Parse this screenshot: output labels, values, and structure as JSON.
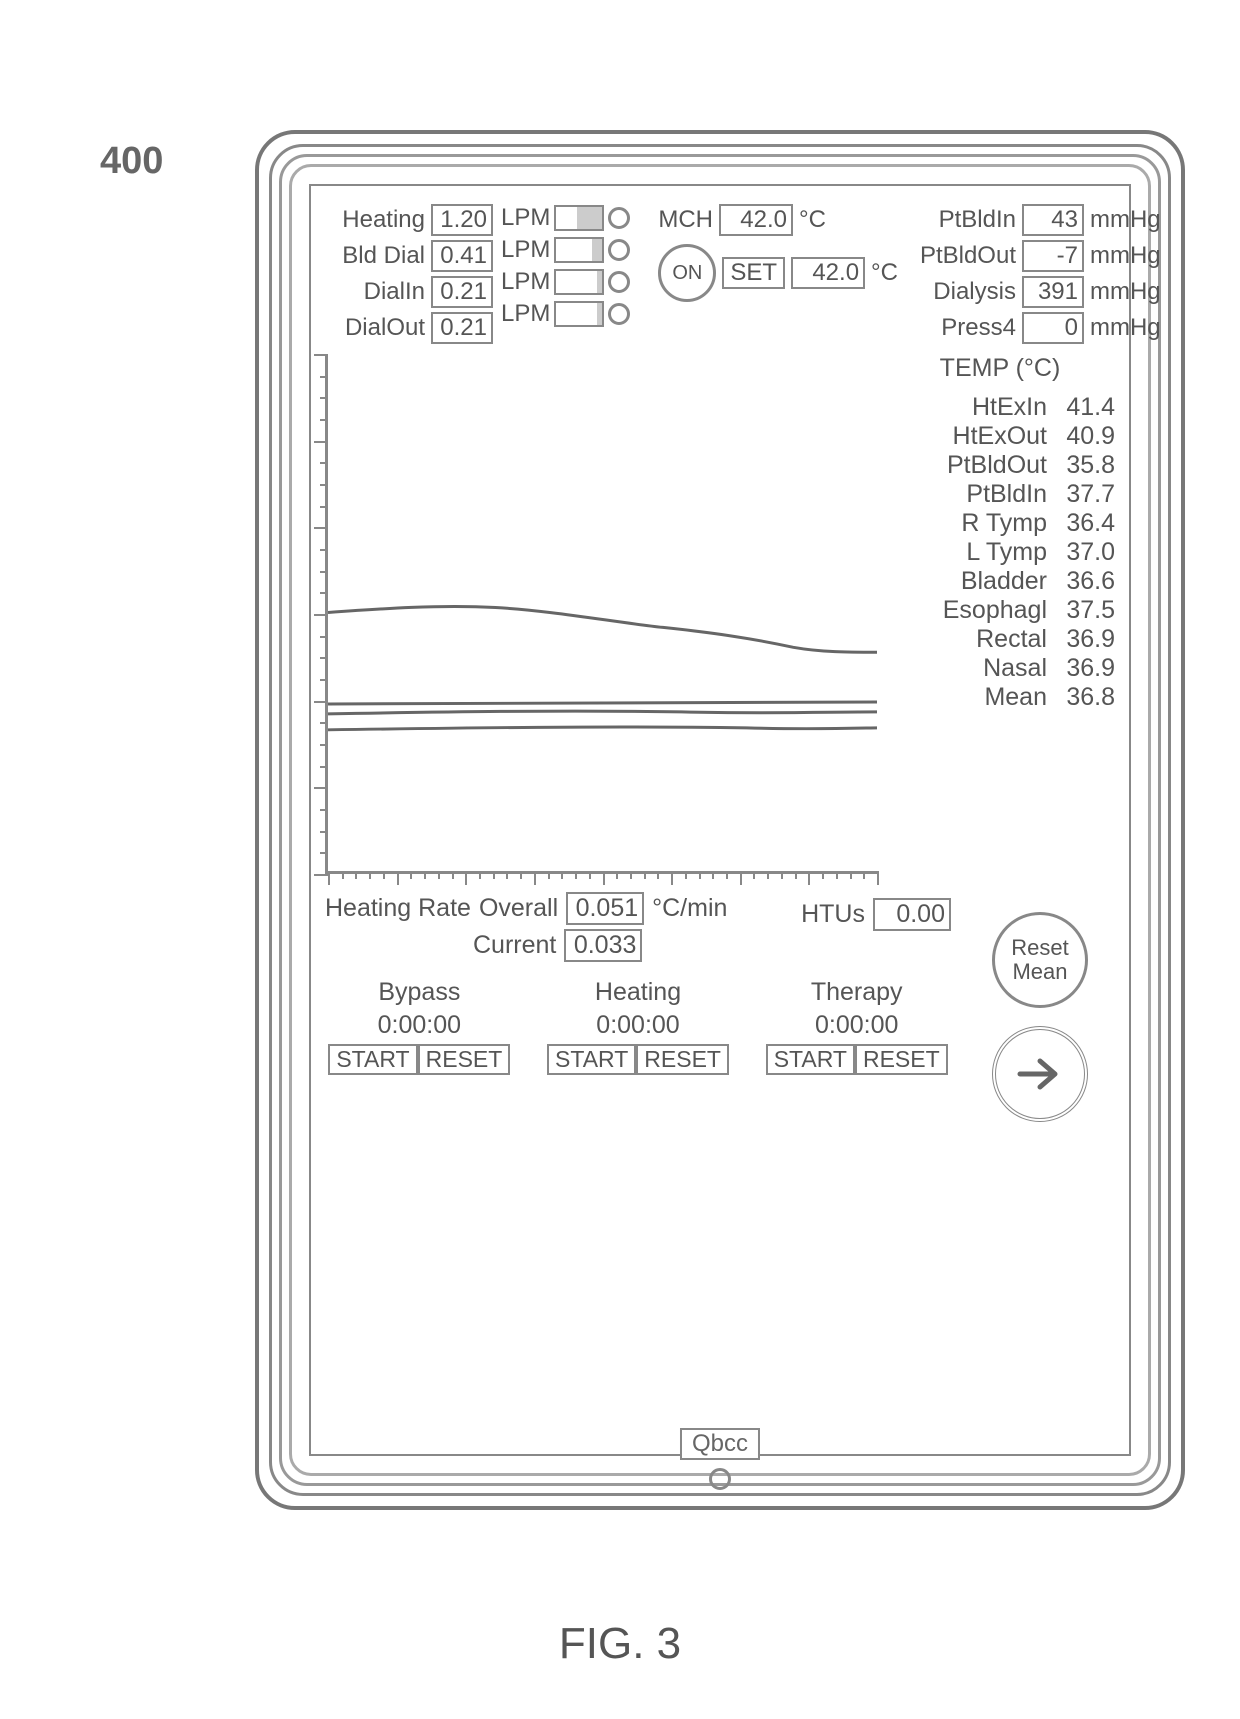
{
  "figure": {
    "ref": "400",
    "caption": "FIG. 3"
  },
  "flows": [
    {
      "label": "Heating",
      "value": "1.20",
      "unit": "LPM",
      "bar_pct": 55
    },
    {
      "label": "Bld Dial",
      "value": "0.41",
      "unit": "LPM",
      "bar_pct": 22
    },
    {
      "label": "DialIn",
      "value": "0.21",
      "unit": "LPM",
      "bar_pct": 12
    },
    {
      "label": "DialOut",
      "value": "0.21",
      "unit": "LPM",
      "bar_pct": 12
    }
  ],
  "mch": {
    "label": "MCH",
    "value": "42.0",
    "unit": "°C",
    "set_label": "SET",
    "set_value": "42.0",
    "set_unit": "°C",
    "on_label": "ON"
  },
  "pressures": [
    {
      "label": "PtBldIn",
      "value": "43",
      "unit": "mmHg"
    },
    {
      "label": "PtBldOut",
      "value": "-7",
      "unit": "mmHg"
    },
    {
      "label": "Dialysis",
      "value": "391",
      "unit": "mmHg"
    },
    {
      "label": "Press4",
      "value": "0",
      "unit": "mmHg"
    }
  ],
  "temps": {
    "header": "TEMP (°C)",
    "rows": [
      {
        "name": "HtExIn",
        "value": "41.4"
      },
      {
        "name": "HtExOut",
        "value": "40.9"
      },
      {
        "name": "PtBldOut",
        "value": "35.8"
      },
      {
        "name": "PtBldIn",
        "value": "37.7"
      },
      {
        "name": "R Tymp",
        "value": "36.4"
      },
      {
        "name": "L Tymp",
        "value": "37.0"
      },
      {
        "name": "Bladder",
        "value": "36.6"
      },
      {
        "name": "Esophagl",
        "value": "37.5"
      },
      {
        "name": "Rectal",
        "value": "36.9"
      },
      {
        "name": "Nasal",
        "value": "36.9"
      },
      {
        "name": "Mean",
        "value": "36.8"
      }
    ]
  },
  "heating_rate": {
    "label": "Heating Rate",
    "overall_label": "Overall",
    "overall": "0.051",
    "unit": "°C/min",
    "current_label": "Current",
    "current": "0.033"
  },
  "htu": {
    "label": "HTUs",
    "value": "0.00"
  },
  "timers": [
    {
      "name": "Bypass",
      "time": "0:00:00",
      "start": "START",
      "reset": "RESET"
    },
    {
      "name": "Heating",
      "time": "0:00:00",
      "start": "START",
      "reset": "RESET"
    },
    {
      "name": "Therapy",
      "time": "0:00:00",
      "start": "START",
      "reset": "RESET"
    }
  ],
  "buttons": {
    "reset_mean1": "Reset",
    "reset_mean2": "Mean",
    "qbcc": "Qbcc"
  },
  "chart": {
    "stroke": "#666",
    "stroke_width": 3,
    "traces": [
      "M0,260 C60,256 120,252 180,255 C240,258 310,270 360,275 C410,280 450,285 500,295 C530,300 560,300 590,300",
      "M0,352 L590,350",
      "M0,362 C120,360 250,358 380,360 C470,362 540,360 590,360",
      "M0,378 C150,376 300,374 450,376 C520,378 580,376 590,376"
    ]
  },
  "colors": {
    "line": "#888",
    "text": "#555",
    "bg": "#ffffff"
  }
}
